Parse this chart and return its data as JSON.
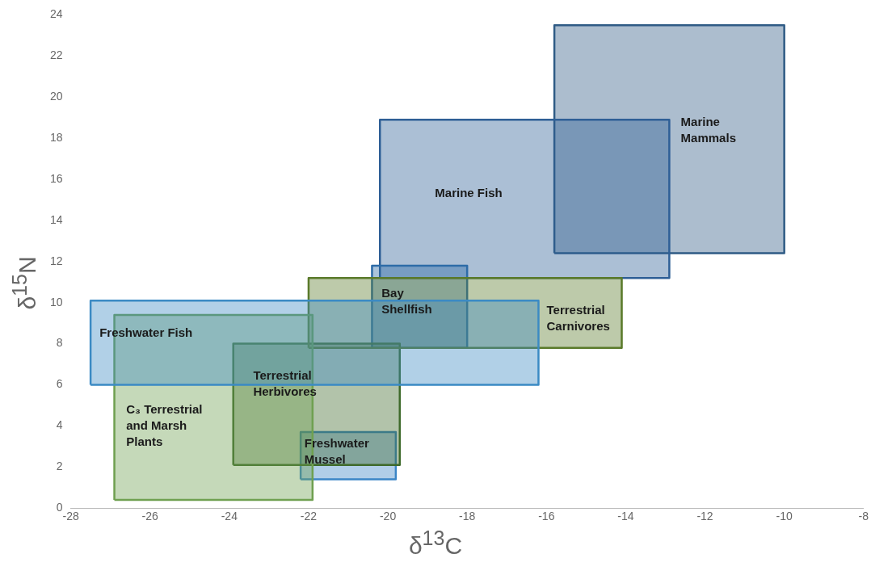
{
  "chart_data": {
    "type": "area",
    "xlabel": "δ$^{13}$C",
    "ylabel": "δ$^{15}$N",
    "xlim": [
      -28,
      -8
    ],
    "xticks": [
      -28,
      -26,
      -24,
      -22,
      -20,
      -18,
      -16,
      -14,
      -12,
      -10,
      -8
    ],
    "ylim": [
      0,
      24
    ],
    "yticks": [
      0,
      2,
      4,
      6,
      8,
      10,
      12,
      14,
      16,
      18,
      20,
      22,
      24
    ],
    "grid": false,
    "legend": false,
    "marker": "none",
    "series": [
      {
        "name": "Freshwater Fish",
        "color": "#3b8ac4",
        "x": [
          -27.5,
          -27.5,
          -16.2,
          -16.2,
          -27.5
        ],
        "values": [
          6.0,
          10.1,
          10.1,
          6.0,
          6.0
        ]
      },
      {
        "name": "C₃ Terrestrial and Marsh Plants",
        "color": "#6fa050",
        "x": [
          -26.9,
          -26.9,
          -21.9,
          -21.9,
          -26.9
        ],
        "values": [
          0.4,
          9.4,
          9.4,
          0.4,
          0.4
        ]
      },
      {
        "name": "Terrestrial Carnivores",
        "color": "#5a7a2a",
        "x": [
          -22.0,
          -22.0,
          -14.1,
          -14.1,
          -22.0
        ],
        "values": [
          7.8,
          11.2,
          11.2,
          7.8,
          7.8
        ]
      },
      {
        "name": "Terrestrial Herbivores",
        "color": "#3e6a2a",
        "x": [
          -23.9,
          -23.9,
          -19.7,
          -19.7,
          -23.9
        ],
        "values": [
          2.1,
          8.0,
          8.0,
          2.1,
          2.1
        ]
      },
      {
        "name": "Bay Shellfish",
        "color": "#2e6ca8",
        "x": [
          -20.4,
          -20.4,
          -18.0,
          -18.0,
          -20.4
        ],
        "values": [
          7.8,
          11.8,
          11.8,
          7.8,
          7.8
        ]
      },
      {
        "name": "Freshwater Mussel",
        "color": "#3b85c6",
        "x": [
          -22.2,
          -22.2,
          -19.8,
          -19.8,
          -22.2
        ],
        "values": [
          1.4,
          3.7,
          3.7,
          1.4,
          1.4
        ]
      },
      {
        "name": "Marine Fish",
        "color": "#2e5f96",
        "x": [
          -20.2,
          -20.2,
          -12.9,
          -12.9,
          -20.2
        ],
        "values": [
          11.2,
          18.9,
          18.9,
          11.2,
          11.2
        ]
      },
      {
        "name": "Marine Mammals",
        "color": "#2f5b85",
        "x": [
          -15.8,
          -15.8,
          -10.0,
          -10.0,
          -15.8
        ],
        "values": [
          12.4,
          23.5,
          23.5,
          12.4,
          12.4
        ]
      }
    ]
  }
}
